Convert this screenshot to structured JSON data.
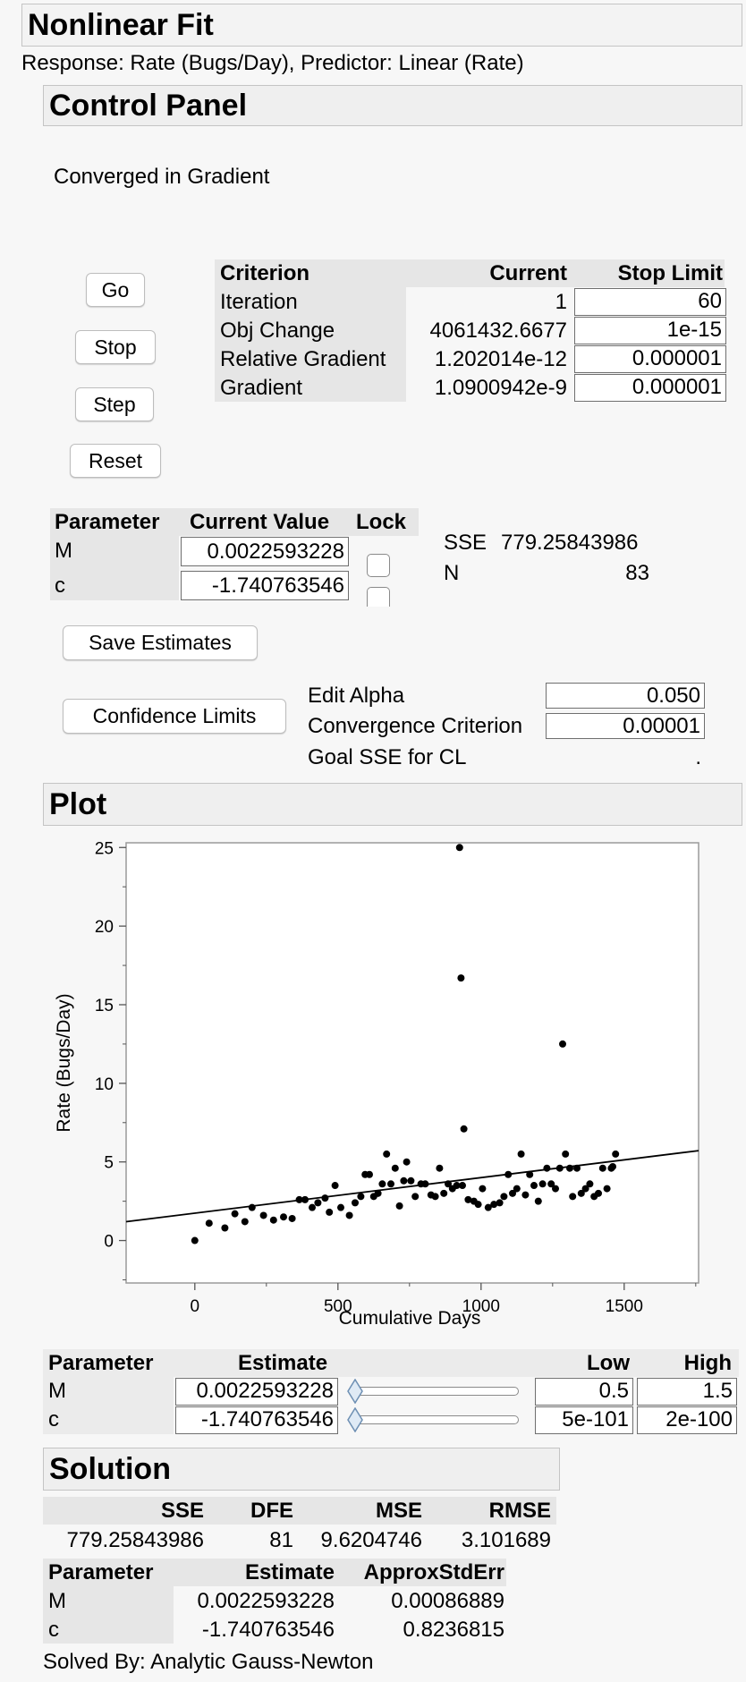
{
  "title": "Nonlinear Fit",
  "subtitle": "Response: Rate (Bugs/Day), Predictor: Linear (Rate)",
  "control_panel": {
    "header": "Control Panel",
    "status": "Converged in Gradient",
    "buttons": {
      "go": "Go",
      "stop": "Stop",
      "step": "Step",
      "reset": "Reset"
    },
    "criteria": {
      "headers": [
        "Criterion",
        "Current",
        "Stop Limit"
      ],
      "rows": [
        {
          "criterion": "Iteration",
          "current": "1",
          "stop_limit": "60"
        },
        {
          "criterion": "Obj Change",
          "current": "4061432.6677",
          "stop_limit": "1e-15"
        },
        {
          "criterion": "Relative Gradient",
          "current": "1.202014e-12",
          "stop_limit": "0.000001"
        },
        {
          "criterion": "Gradient",
          "current": "1.0900942e-9",
          "stop_limit": "0.000001"
        }
      ]
    },
    "params": {
      "headers": [
        "Parameter",
        "Current Value",
        "Lock"
      ],
      "rows": [
        {
          "name": "M",
          "value": "0.0022593228"
        },
        {
          "name": "c",
          "value": "-1.740763546"
        }
      ]
    },
    "sse_label": "SSE",
    "sse_value": "779.25843986",
    "n_label": "N",
    "n_value": "83",
    "save_estimates": "Save Estimates",
    "confidence_limits": "Confidence Limits",
    "edit_alpha_label": "Edit Alpha",
    "edit_alpha_value": "0.050",
    "convergence_label": "Convergence Criterion",
    "convergence_value": "0.00001",
    "goal_sse_label": "Goal SSE for CL",
    "goal_sse_value": "."
  },
  "plot": {
    "header": "Plot"
  },
  "chart_data": {
    "type": "scatter",
    "xlabel": "Cumulative Days",
    "ylabel": "Rate (Bugs/Day)",
    "xlim": [
      -240,
      1760
    ],
    "ylim": [
      -2.7,
      25.3
    ],
    "xticks": [
      0,
      500,
      1000,
      1500
    ],
    "yticks": [
      0,
      5,
      10,
      15,
      20,
      25
    ],
    "series": [
      {
        "points": [
          [
            0,
            0
          ],
          [
            50,
            1.1
          ],
          [
            105,
            0.8
          ],
          [
            140,
            1.7
          ],
          [
            175,
            1.2
          ],
          [
            200,
            2.1
          ],
          [
            240,
            1.6
          ],
          [
            275,
            1.3
          ],
          [
            310,
            1.5
          ],
          [
            340,
            1.4
          ],
          [
            365,
            2.6
          ],
          [
            385,
            2.6
          ],
          [
            410,
            2.1
          ],
          [
            430,
            2.4
          ],
          [
            455,
            2.7
          ],
          [
            470,
            1.8
          ],
          [
            490,
            3.5
          ],
          [
            510,
            2.1
          ],
          [
            540,
            1.6
          ],
          [
            560,
            2.4
          ],
          [
            580,
            2.8
          ],
          [
            595,
            4.2
          ],
          [
            610,
            4.2
          ],
          [
            625,
            2.8
          ],
          [
            640,
            3.0
          ],
          [
            655,
            3.6
          ],
          [
            670,
            5.5
          ],
          [
            685,
            3.6
          ],
          [
            700,
            4.6
          ],
          [
            715,
            2.2
          ],
          [
            730,
            3.8
          ],
          [
            740,
            5.0
          ],
          [
            755,
            3.8
          ],
          [
            770,
            2.8
          ],
          [
            790,
            3.6
          ],
          [
            805,
            3.6
          ],
          [
            825,
            2.9
          ],
          [
            840,
            2.8
          ],
          [
            855,
            4.6
          ],
          [
            870,
            3.0
          ],
          [
            885,
            3.6
          ],
          [
            900,
            3.3
          ],
          [
            915,
            3.5
          ],
          [
            925,
            25.0
          ],
          [
            930,
            16.7
          ],
          [
            935,
            3.5
          ],
          [
            940,
            7.1
          ],
          [
            955,
            2.6
          ],
          [
            975,
            2.5
          ],
          [
            990,
            2.3
          ],
          [
            1005,
            3.3
          ],
          [
            1025,
            2.1
          ],
          [
            1045,
            2.3
          ],
          [
            1065,
            2.4
          ],
          [
            1080,
            2.8
          ],
          [
            1095,
            4.2
          ],
          [
            1110,
            3.0
          ],
          [
            1125,
            3.3
          ],
          [
            1140,
            5.5
          ],
          [
            1155,
            2.9
          ],
          [
            1170,
            4.2
          ],
          [
            1185,
            3.5
          ],
          [
            1200,
            2.5
          ],
          [
            1215,
            3.6
          ],
          [
            1230,
            4.6
          ],
          [
            1245,
            3.6
          ],
          [
            1260,
            3.3
          ],
          [
            1275,
            4.6
          ],
          [
            1285,
            12.5
          ],
          [
            1295,
            5.5
          ],
          [
            1310,
            4.6
          ],
          [
            1320,
            2.8
          ],
          [
            1335,
            4.6
          ],
          [
            1350,
            3.0
          ],
          [
            1365,
            3.3
          ],
          [
            1380,
            3.6
          ],
          [
            1395,
            2.8
          ],
          [
            1410,
            3.0
          ],
          [
            1425,
            4.6
          ],
          [
            1440,
            3.3
          ],
          [
            1455,
            4.6
          ],
          [
            1470,
            5.5
          ],
          [
            1460,
            4.7
          ]
        ]
      }
    ],
    "fit_line": {
      "intercept": 1.740763546,
      "slope": 0.0022593228
    }
  },
  "slider_table": {
    "headers": [
      "Parameter",
      "Estimate",
      "Low",
      "High"
    ],
    "rows": [
      {
        "name": "M",
        "estimate": "0.0022593228",
        "low": "0.5",
        "high": "1.5"
      },
      {
        "name": "c",
        "estimate": "-1.740763546",
        "low": "5e-101",
        "high": "2e-100"
      }
    ]
  },
  "solution": {
    "header": "Solution",
    "summary_headers": [
      "SSE",
      "DFE",
      "MSE",
      "RMSE"
    ],
    "summary_values": [
      "779.25843986",
      "81",
      "9.6204746",
      "3.101689"
    ],
    "param_headers": [
      "Parameter",
      "Estimate",
      "ApproxStdErr"
    ],
    "params": [
      {
        "name": "M",
        "estimate": "0.0022593228",
        "stderr": "0.00086889"
      },
      {
        "name": "c",
        "estimate": "-1.740763546",
        "stderr": "0.8236815"
      }
    ],
    "solved_by": "Solved By: Analytic Gauss-Newton"
  }
}
